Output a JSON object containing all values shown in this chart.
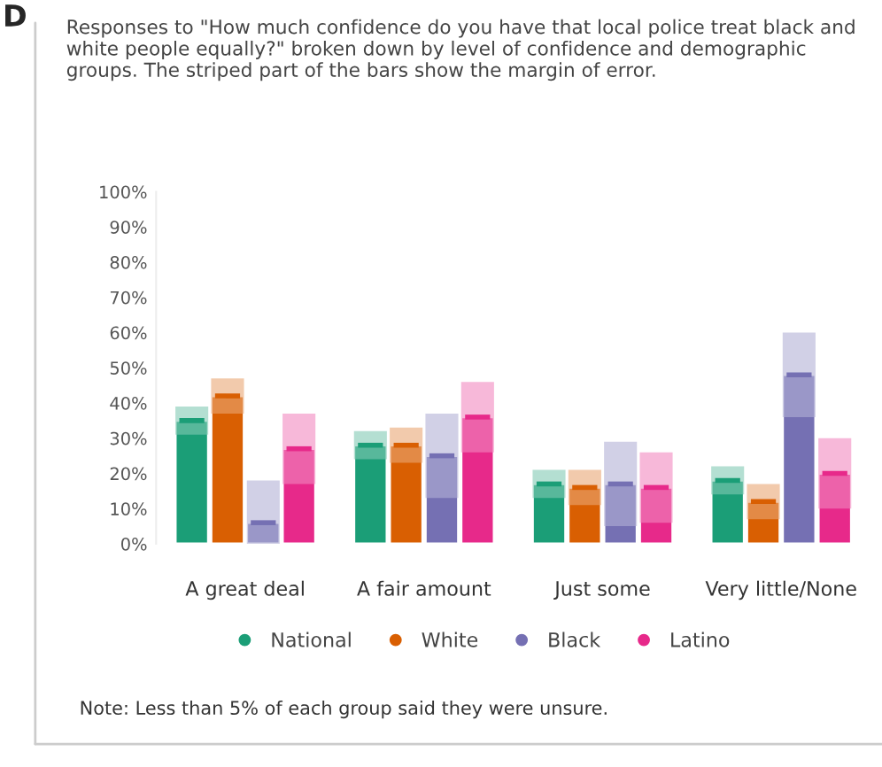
{
  "chart_data": {
    "type": "bar",
    "title": "Responses to \"How much confidence do you have that local police treat black and white people equally?\" broken down by level of confidence and demographic groups. The striped part of the bars show the margin of error.",
    "categories": [
      "A great deal",
      "A fair amount",
      "Just some",
      "Very little/None"
    ],
    "series": [
      {
        "name": "National",
        "color": "#1b9e77",
        "values": [
          35,
          28,
          17,
          18
        ],
        "errors": [
          [
            31,
            39
          ],
          [
            24,
            32
          ],
          [
            13,
            21
          ],
          [
            14,
            22
          ]
        ]
      },
      {
        "name": "White",
        "color": "#d95f02",
        "values": [
          42,
          28,
          16,
          12
        ],
        "errors": [
          [
            37,
            47
          ],
          [
            23,
            33
          ],
          [
            11,
            21
          ],
          [
            7,
            17
          ]
        ]
      },
      {
        "name": "Black",
        "color": "#7570b3",
        "values": [
          6,
          25,
          17,
          48
        ],
        "errors": [
          [
            0,
            18
          ],
          [
            13,
            37
          ],
          [
            5,
            29
          ],
          [
            36,
            60
          ]
        ]
      },
      {
        "name": "Latino",
        "color": "#e7298a",
        "values": [
          27,
          36,
          16,
          20
        ],
        "errors": [
          [
            17,
            37
          ],
          [
            26,
            46
          ],
          [
            6,
            26
          ],
          [
            10,
            30
          ]
        ]
      }
    ],
    "ylim": [
      0,
      100
    ],
    "yticks": [
      {
        "value": 0,
        "label": "0%"
      },
      {
        "value": 10,
        "label": "10%"
      },
      {
        "value": 20,
        "label": "20%"
      },
      {
        "value": 30,
        "label": "30%"
      },
      {
        "value": 40,
        "label": "40%"
      },
      {
        "value": 50,
        "label": "50%"
      },
      {
        "value": 60,
        "label": "60%"
      },
      {
        "value": 70,
        "label": "70%"
      },
      {
        "value": 80,
        "label": "80%"
      },
      {
        "value": 90,
        "label": "90%"
      },
      {
        "value": 100,
        "label": "100%"
      }
    ],
    "legend": "bottom",
    "marker": "circle",
    "annotations": [
      "D",
      "Note: Less than 5% of each group said they were unsure."
    ]
  }
}
